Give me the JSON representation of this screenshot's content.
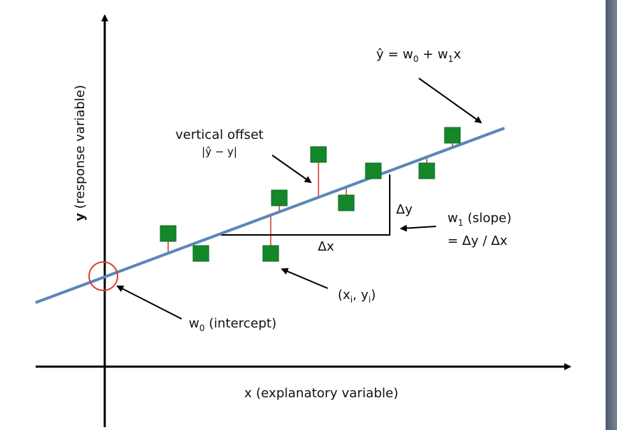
{
  "equation": [
    "ŷ = w",
    "0",
    " + w",
    "1",
    "x"
  ],
  "vertical_offset": {
    "title": "vertical offset",
    "formula": "|ŷ − y|"
  },
  "delta_y": "Δy",
  "delta_x": "Δx",
  "slope": {
    "line1": [
      "w",
      "1",
      " (slope)"
    ],
    "line2": "= Δy / Δx"
  },
  "point": [
    "(x",
    "i",
    ", y",
    "i",
    ")"
  ],
  "intercept": [
    "w",
    "0",
    " (intercept)"
  ],
  "x_axis_label": "x (explanatory variable)",
  "y_axis_label": [
    "y",
    " (response variable)"
  ]
}
